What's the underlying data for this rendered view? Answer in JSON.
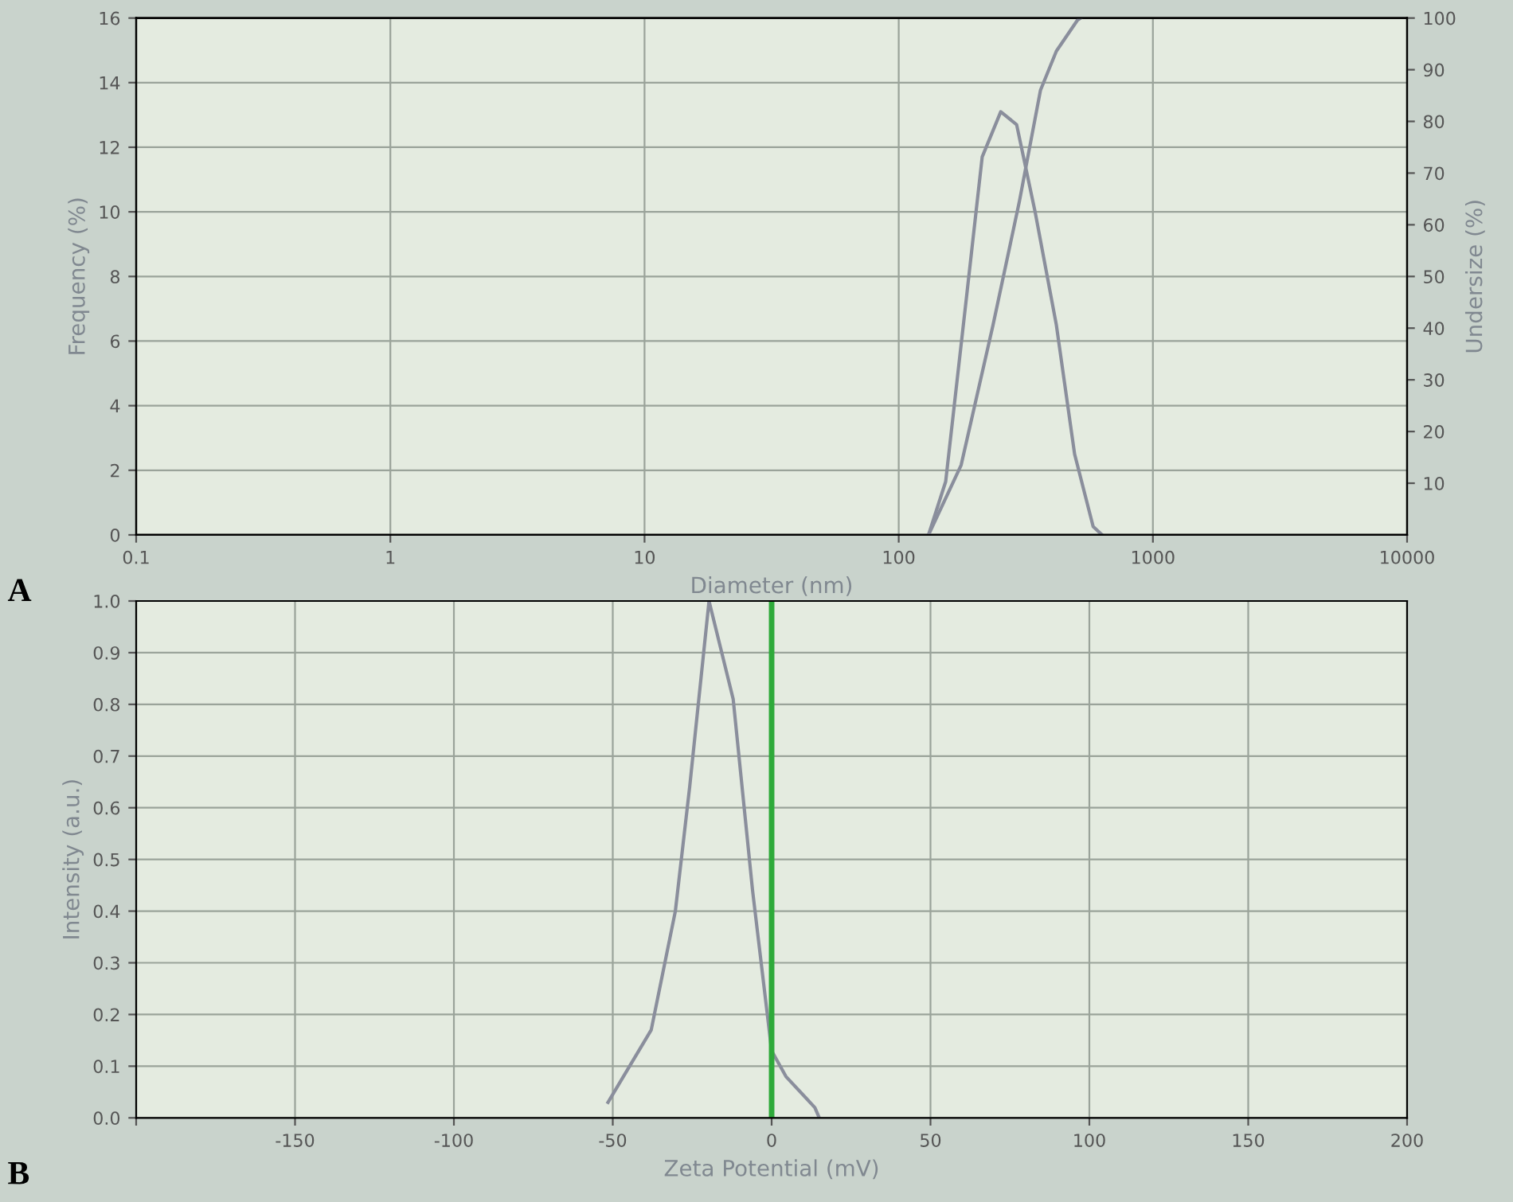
{
  "chart_data": [
    {
      "type": "line",
      "xlabel": "Diameter (nm)",
      "ylabel": "Frequency (%)",
      "y2label": "Undersize (%)",
      "log": "x",
      "grid": true,
      "annotations": [
        "A"
      ],
      "xlim": [
        0.1,
        10000
      ],
      "xticks": [
        0.1,
        1,
        10,
        100,
        1000,
        10000
      ],
      "ylim": [
        0,
        16
      ],
      "yticks": [
        0,
        2,
        4,
        6,
        8,
        10,
        12,
        14,
        16
      ],
      "y2lim": [
        0,
        100
      ],
      "y2ticks": [
        10,
        20,
        30,
        40,
        50,
        60,
        70,
        80,
        90,
        100
      ],
      "series": [
        {
          "color": "#8a8e9c",
          "x": [
            131,
            153,
            185,
            213,
            252,
            291,
            344,
            417,
            492,
            582,
            631
          ],
          "values": [
            0,
            1.65,
            7.4,
            11.7,
            13.1,
            12.7,
            10,
            6.5,
            2.5,
            0.26,
            0
          ]
        },
        {
          "color": "#8a8e9c",
          "axis": "y2",
          "x": [
            131,
            176,
            235,
            298,
            361,
            417,
            505,
            520
          ],
          "values": [
            0,
            13.5,
            40.6,
            64.4,
            86,
            93.6,
            99.6,
            100
          ]
        }
      ]
    },
    {
      "type": "line",
      "xlabel": "Zeta Potential (mV)",
      "ylabel": "Intensity (a.u.)",
      "grid": true,
      "annotations": [
        "B"
      ],
      "xlim": [
        -200,
        200
      ],
      "xticks": [
        {
          "value": -200,
          "label": null
        },
        -150,
        -100,
        -50,
        0,
        50,
        100,
        150,
        200
      ],
      "ylim": [
        0,
        1
      ],
      "yticks": [
        {
          "value": 0,
          "label": "0.0"
        },
        0.1,
        0.2,
        0.3,
        0.4,
        0.5,
        0.6,
        0.7,
        0.8,
        0.9,
        {
          "value": 1,
          "label": "1.0"
        }
      ],
      "ref_lines": [
        {
          "axis": "x",
          "value": 0,
          "color": "#2eaa3a"
        }
      ],
      "series": [
        {
          "color": "#8a8e9c",
          "x": [
            -51.5,
            -37.9,
            -30.3,
            -25.8,
            -19.7,
            -12.1,
            -6,
            0,
            4.5,
            13.6,
            15
          ],
          "values": [
            0.03,
            0.17,
            0.4,
            0.64,
            1.0,
            0.81,
            0.44,
            0.13,
            0.08,
            0.02,
            0
          ]
        }
      ]
    }
  ]
}
